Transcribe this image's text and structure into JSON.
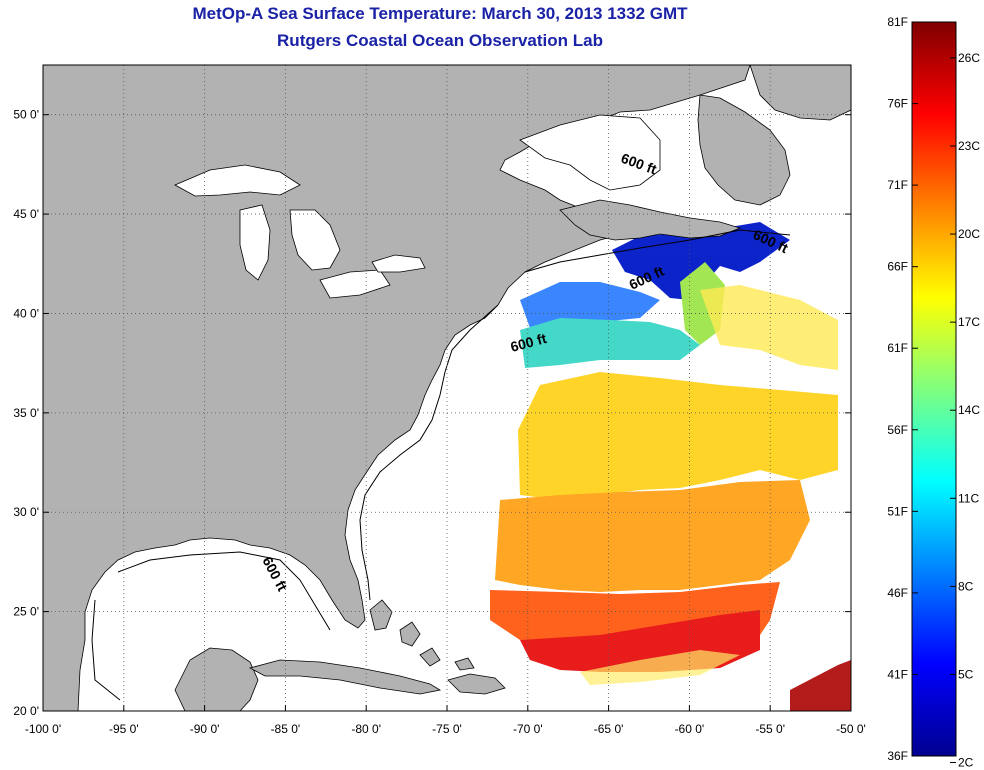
{
  "header": {
    "title": "MetOp-A Sea Surface Temperature:  March 30, 2013 1332 GMT",
    "subtitle": "Rutgers Coastal Ocean Observation Lab"
  },
  "map": {
    "lon_range": [
      -100,
      -50
    ],
    "lat_range": [
      20,
      52.5
    ],
    "lon_ticks": [
      {
        "v": -100,
        "label": "-100 0'"
      },
      {
        "v": -95,
        "label": "-95 0'"
      },
      {
        "v": -90,
        "label": "-90 0'"
      },
      {
        "v": -85,
        "label": "-85 0'"
      },
      {
        "v": -80,
        "label": "-80 0'"
      },
      {
        "v": -75,
        "label": "-75 0'"
      },
      {
        "v": -70,
        "label": "-70 0'"
      },
      {
        "v": -65,
        "label": "-65 0'"
      },
      {
        "v": -60,
        "label": "-60 0'"
      },
      {
        "v": -55,
        "label": "-55 0'"
      },
      {
        "v": -50,
        "label": "-50 0'"
      }
    ],
    "lat_ticks": [
      {
        "v": 20,
        "label": "20 0'"
      },
      {
        "v": 25,
        "label": "25 0'"
      },
      {
        "v": 30,
        "label": "30 0'"
      },
      {
        "v": 35,
        "label": "35 0'"
      },
      {
        "v": 40,
        "label": "40 0'"
      },
      {
        "v": 45,
        "label": "45 0'"
      },
      {
        "v": 50,
        "label": "50 0'"
      }
    ],
    "contour_label": "600 ft",
    "land_color": "#b2b2b2"
  },
  "colorbar": {
    "f_labels": [
      {
        "v": 36,
        "label": "36F"
      },
      {
        "v": 41,
        "label": "41F"
      },
      {
        "v": 46,
        "label": "46F"
      },
      {
        "v": 51,
        "label": "51F"
      },
      {
        "v": 56,
        "label": "56F"
      },
      {
        "v": 61,
        "label": "61F"
      },
      {
        "v": 66,
        "label": "66F"
      },
      {
        "v": 71,
        "label": "71F"
      },
      {
        "v": 76,
        "label": "76F"
      },
      {
        "v": 81,
        "label": "81F"
      }
    ],
    "c_labels": [
      {
        "v": 2,
        "label": "2C"
      },
      {
        "v": 5,
        "label": "5C"
      },
      {
        "v": 8,
        "label": "8C"
      },
      {
        "v": 11,
        "label": "11C"
      },
      {
        "v": 14,
        "label": "14C"
      },
      {
        "v": 17,
        "label": "17C"
      },
      {
        "v": 20,
        "label": "20C"
      },
      {
        "v": 23,
        "label": "23C"
      },
      {
        "v": 26,
        "label": "26C"
      }
    ],
    "range_f": [
      36,
      81
    ]
  }
}
